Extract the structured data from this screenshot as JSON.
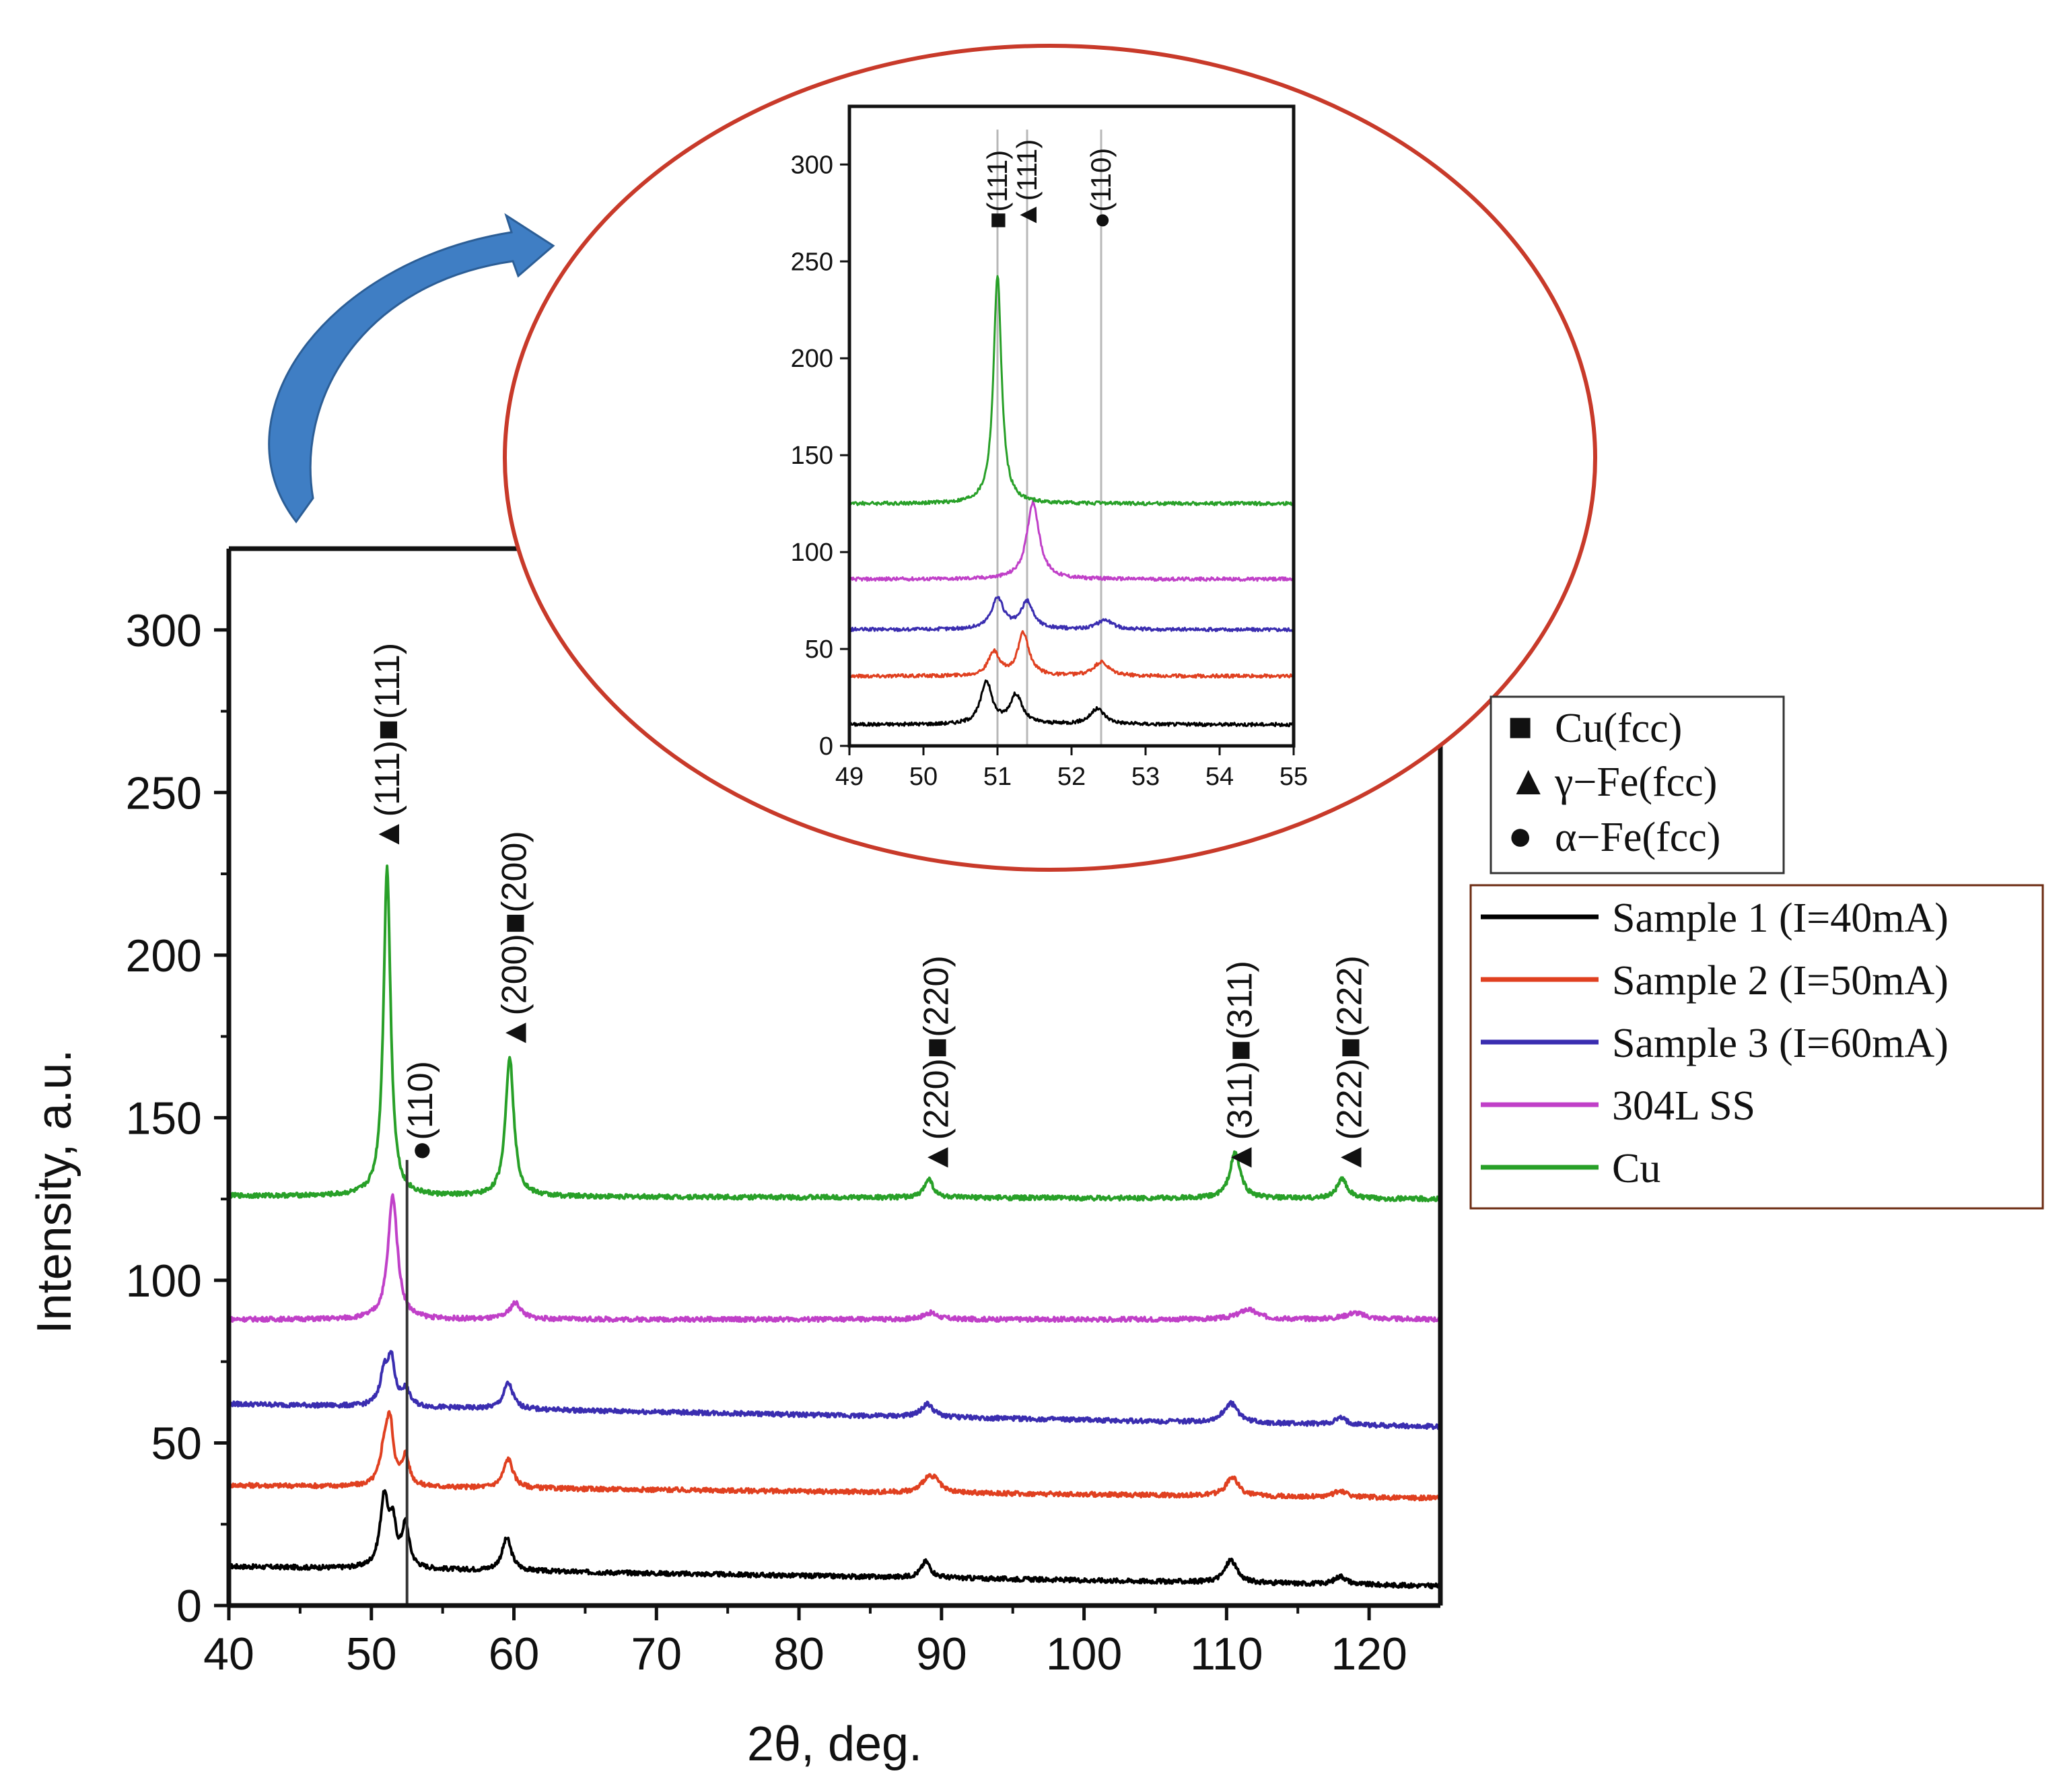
{
  "chart_data": [
    {
      "id": "main",
      "type": "line",
      "xlabel": "2θ, deg.",
      "ylabel": "Intensity, a.u.",
      "xlim": [
        40,
        125
      ],
      "ylim": [
        0,
        325
      ],
      "xticks": [
        40,
        50,
        60,
        70,
        80,
        90,
        100,
        110,
        120
      ],
      "yticks": [
        0,
        50,
        100,
        150,
        200,
        250,
        300
      ],
      "series": [
        {
          "name": "Sample 1 (I=40mA)",
          "color": "#000000",
          "baseline_start": 12,
          "baseline_end": 6,
          "peaks": [
            [
              50.9,
              21,
              0.35
            ],
            [
              51.5,
              12,
              0.3
            ],
            [
              52.4,
              13,
              0.3
            ],
            [
              59.5,
              10,
              0.4
            ],
            [
              88.9,
              5,
              0.4
            ],
            [
              110.3,
              7,
              0.5
            ],
            [
              118.0,
              2.5,
              0.5
            ]
          ]
        },
        {
          "name": "Sample 2 (I=50mA)",
          "color": "#e04020",
          "baseline_start": 37,
          "baseline_end": 33,
          "peaks": [
            [
              50.9,
              10,
              0.35
            ],
            [
              51.3,
              18,
              0.3
            ],
            [
              52.4,
              9,
              0.3
            ],
            [
              59.6,
              9,
              0.4
            ],
            [
              89.0,
              4,
              0.5
            ],
            [
              89.6,
              3,
              0.4
            ],
            [
              110.4,
              6,
              0.5
            ],
            [
              118.0,
              2,
              0.5
            ]
          ]
        },
        {
          "name": "Sample 3 (I=60mA)",
          "color": "#3a2db0",
          "baseline_start": 62,
          "baseline_end": 55,
          "peaks": [
            [
              50.9,
              10,
              0.35
            ],
            [
              51.4,
              13,
              0.3
            ],
            [
              52.4,
              5,
              0.35
            ],
            [
              59.6,
              8,
              0.4
            ],
            [
              89.0,
              4,
              0.5
            ],
            [
              110.3,
              6,
              0.6
            ],
            [
              118.0,
              2,
              0.5
            ]
          ]
        },
        {
          "name": "304L SS",
          "color": "#c040c8",
          "baseline_start": 88,
          "baseline_end": 88,
          "peaks": [
            [
              51.5,
              38,
              0.4
            ],
            [
              60.1,
              5,
              0.5
            ],
            [
              89.2,
              2,
              0.6
            ],
            [
              111.5,
              3,
              0.8
            ],
            [
              119.0,
              2,
              0.8
            ]
          ]
        },
        {
          "name": "Cu",
          "color": "#28a028",
          "baseline_start": 126,
          "baseline_end": 125,
          "peaks": [
            [
              51.1,
              101,
              0.3
            ],
            [
              59.7,
              43,
              0.35
            ],
            [
              89.1,
              6,
              0.35
            ],
            [
              110.6,
              14,
              0.45
            ],
            [
              118.1,
              6,
              0.45
            ]
          ]
        }
      ],
      "peak_labels": [
        {
          "x": 51.1,
          "text": "(111)",
          "markers": [
            "▲",
            "(111)",
            "■",
            "(111)"
          ]
        },
        {
          "x": 53.4,
          "text": "(110)",
          "markers": [
            "●",
            "(110)"
          ]
        },
        {
          "x": 60.0,
          "text": "(200)",
          "markers": [
            "▲",
            "(200)",
            "■",
            "(200)"
          ]
        },
        {
          "x": 89.6,
          "text": "(220)",
          "markers": [
            "▲",
            "(220)",
            "■",
            "(220)"
          ]
        },
        {
          "x": 110.9,
          "text": "(311)",
          "markers": [
            "▲",
            "(311)",
            "■",
            "(311)"
          ]
        },
        {
          "x": 118.6,
          "text": "(222)",
          "markers": [
            "▲",
            "(222)",
            "■",
            "(222)"
          ]
        }
      ],
      "reference_line_x": 52.5,
      "legend_placement": "right",
      "legend_series": [
        "Sample 1 (I=40mA)",
        "Sample 2 (I=50mA)",
        "Sample 3 (I=60mA)",
        "304L SS",
        "Cu"
      ]
    },
    {
      "id": "inset",
      "type": "line",
      "xlim": [
        49,
        55
      ],
      "ylim": [
        0,
        330
      ],
      "xticks": [
        49,
        50,
        51,
        52,
        53,
        54,
        55
      ],
      "yticks": [
        0,
        50,
        100,
        150,
        200,
        250,
        300
      ],
      "reference_lines_x": [
        51.0,
        51.4,
        52.4
      ],
      "series": [
        {
          "name": "Sample 1 (I=40mA)",
          "color": "#000000",
          "baseline": 11,
          "peaks": [
            [
              50.85,
              22,
              0.09
            ],
            [
              51.25,
              15,
              0.1
            ],
            [
              52.35,
              8,
              0.12
            ]
          ]
        },
        {
          "name": "Sample 2 (I=50mA)",
          "color": "#e04020",
          "baseline": 36,
          "peaks": [
            [
              50.95,
              12,
              0.09
            ],
            [
              51.35,
              22,
              0.09
            ],
            [
              52.4,
              7,
              0.12
            ]
          ]
        },
        {
          "name": "Sample 3 (I=60mA)",
          "color": "#3a2db0",
          "baseline": 60,
          "peaks": [
            [
              51.0,
              16,
              0.1
            ],
            [
              51.4,
              14,
              0.1
            ],
            [
              52.45,
              5,
              0.12
            ]
          ]
        },
        {
          "name": "304L SS",
          "color": "#c040c8",
          "baseline": 86,
          "peaks": [
            [
              51.48,
              40,
              0.1
            ]
          ]
        },
        {
          "name": "Cu",
          "color": "#28a028",
          "baseline": 125,
          "peaks": [
            [
              51.0,
              118,
              0.065
            ]
          ]
        }
      ],
      "peak_labels": [
        {
          "x": 51.0,
          "markers": [
            "■",
            "(111)"
          ]
        },
        {
          "x": 51.4,
          "markers": [
            "▲",
            "(111)"
          ]
        },
        {
          "x": 52.4,
          "markers": [
            "●",
            "(110)"
          ]
        }
      ]
    }
  ],
  "phase_legend": [
    {
      "symbol": "■",
      "label": "Cu(fcc)"
    },
    {
      "symbol": "▲",
      "label": "γ−Fe(fcc)"
    },
    {
      "symbol": "●",
      "label": "α−Fe(fcc)"
    }
  ],
  "colors": {
    "frame": "#111111",
    "ellipse": "#c83a2a",
    "arrow": "#3f7ec4",
    "legend_border": "#6b2a10",
    "refline": "#b8b8b8"
  }
}
